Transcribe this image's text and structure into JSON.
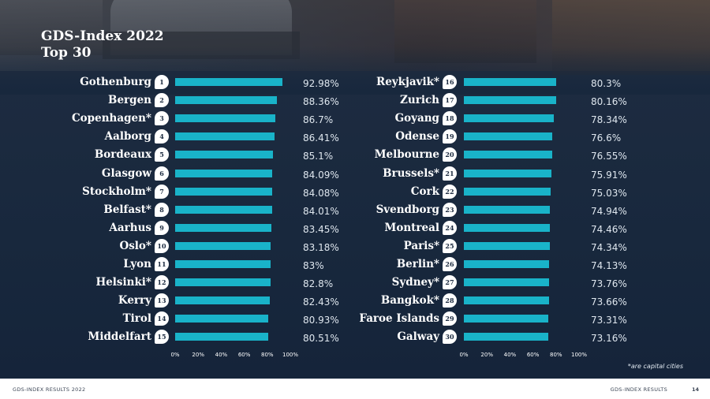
{
  "title_line1": "GDS-Index 2022",
  "title_line2": "Top 30",
  "note": "*are capital cities",
  "footer": {
    "left": "GDS-INDEX RESULTS 2022",
    "right": "GDS-INDEX RESULTS",
    "page": "14"
  },
  "colors": {
    "bar": "#19b3c9",
    "background": "#18283d",
    "text": "#ffffff"
  },
  "chart_data": [
    {
      "type": "bar",
      "orientation": "horizontal",
      "xlim": [
        0,
        100
      ],
      "x_ticks": [
        "0%",
        "20%",
        "40%",
        "60%",
        "80%",
        "100%"
      ],
      "items": [
        {
          "rank": "1",
          "city": "Gothenburg",
          "value": 92.98,
          "label": "92.98%"
        },
        {
          "rank": "2",
          "city": "Bergen",
          "value": 88.36,
          "label": "88.36%"
        },
        {
          "rank": "3",
          "city": "Copenhagen*",
          "value": 86.7,
          "label": "86.7%"
        },
        {
          "rank": "4",
          "city": "Aalborg",
          "value": 86.41,
          "label": "86.41%"
        },
        {
          "rank": "5",
          "city": "Bordeaux",
          "value": 85.1,
          "label": "85.1%"
        },
        {
          "rank": "6",
          "city": "Glasgow",
          "value": 84.09,
          "label": "84.09%"
        },
        {
          "rank": "7",
          "city": "Stockholm*",
          "value": 84.08,
          "label": "84.08%"
        },
        {
          "rank": "8",
          "city": "Belfast*",
          "value": 84.01,
          "label": "84.01%"
        },
        {
          "rank": "9",
          "city": "Aarhus",
          "value": 83.45,
          "label": "83.45%"
        },
        {
          "rank": "10",
          "city": "Oslo*",
          "value": 83.18,
          "label": "83.18%"
        },
        {
          "rank": "11",
          "city": "Lyon",
          "value": 83,
          "label": "83%"
        },
        {
          "rank": "12",
          "city": "Helsinki*",
          "value": 82.8,
          "label": "82.8%"
        },
        {
          "rank": "13",
          "city": "Kerry",
          "value": 82.43,
          "label": "82.43%"
        },
        {
          "rank": "14",
          "city": "Tirol",
          "value": 80.93,
          "label": "80.93%"
        },
        {
          "rank": "15",
          "city": "Middelfart",
          "value": 80.51,
          "label": "80.51%"
        }
      ]
    },
    {
      "type": "bar",
      "orientation": "horizontal",
      "xlim": [
        0,
        100
      ],
      "x_ticks": [
        "0%",
        "20%",
        "40%",
        "60%",
        "80%",
        "100%"
      ],
      "items": [
        {
          "rank": "16",
          "city": "Reykjavik*",
          "value": 80.3,
          "label": "80.3%"
        },
        {
          "rank": "17",
          "city": "Zurich",
          "value": 80.16,
          "label": "80.16%"
        },
        {
          "rank": "18",
          "city": "Goyang",
          "value": 78.34,
          "label": "78.34%"
        },
        {
          "rank": "19",
          "city": "Odense",
          "value": 76.6,
          "label": "76.6%"
        },
        {
          "rank": "20",
          "city": "Melbourne",
          "value": 76.55,
          "label": "76.55%"
        },
        {
          "rank": "21",
          "city": "Brussels*",
          "value": 75.91,
          "label": "75.91%"
        },
        {
          "rank": "22",
          "city": "Cork",
          "value": 75.03,
          "label": "75.03%"
        },
        {
          "rank": "23",
          "city": "Svendborg",
          "value": 74.94,
          "label": "74.94%"
        },
        {
          "rank": "24",
          "city": "Montreal",
          "value": 74.46,
          "label": "74.46%"
        },
        {
          "rank": "25",
          "city": "Paris*",
          "value": 74.34,
          "label": "74.34%"
        },
        {
          "rank": "26",
          "city": "Berlin*",
          "value": 74.13,
          "label": "74.13%"
        },
        {
          "rank": "27",
          "city": "Sydney*",
          "value": 73.76,
          "label": "73.76%"
        },
        {
          "rank": "28",
          "city": "Bangkok*",
          "value": 73.66,
          "label": "73.66%"
        },
        {
          "rank": "29",
          "city": "Faroe Islands",
          "value": 73.31,
          "label": "73.31%"
        },
        {
          "rank": "30",
          "city": "Galway",
          "value": 73.16,
          "label": "73.16%"
        }
      ]
    }
  ]
}
